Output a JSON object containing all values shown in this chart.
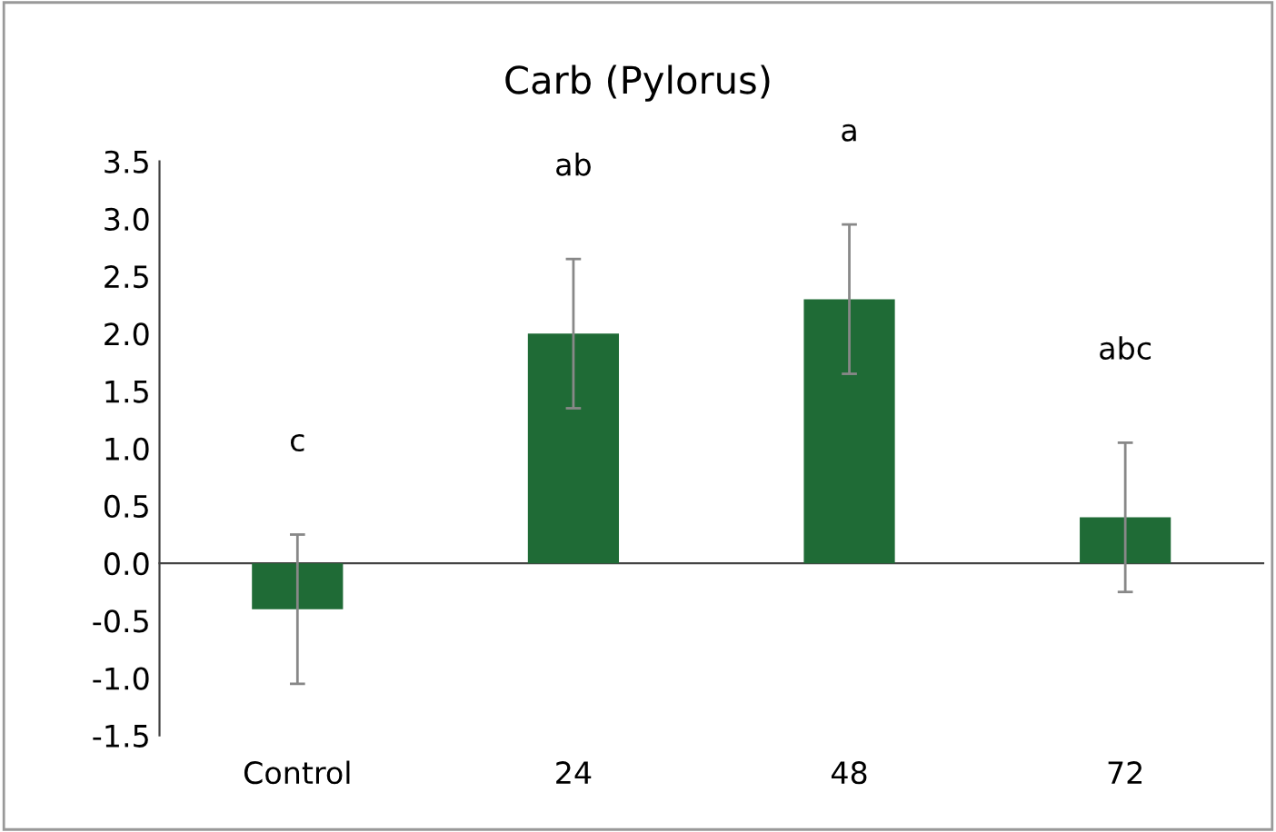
{
  "chart_data": {
    "type": "bar",
    "title": "Carb (Pylorus)",
    "categories": [
      "Control",
      "24",
      "48",
      "72"
    ],
    "values": [
      -0.4,
      2.0,
      2.3,
      0.4
    ],
    "errors": [
      0.65,
      0.65,
      0.65,
      0.65
    ],
    "color": "#1f6b36",
    "ylim": [
      -1.5,
      3.5
    ],
    "yticks": [
      {
        "value": -1.5,
        "label": "-1.5"
      },
      {
        "value": -1,
        "label": "-1.0"
      },
      {
        "value": -0.5,
        "label": "-0.5"
      },
      {
        "value": 0,
        "label": "0.0"
      },
      {
        "value": 0.5,
        "label": "0.5"
      },
      {
        "value": 1,
        "label": "1.0"
      },
      {
        "value": 1.5,
        "label": "1.5"
      },
      {
        "value": 2,
        "label": "2.0"
      },
      {
        "value": 2.5,
        "label": "2.5"
      },
      {
        "value": 3,
        "label": "3.0"
      },
      {
        "value": 3.5,
        "label": "3.5"
      }
    ],
    "annotations": [
      "c",
      "ab",
      "a",
      "abc"
    ]
  }
}
